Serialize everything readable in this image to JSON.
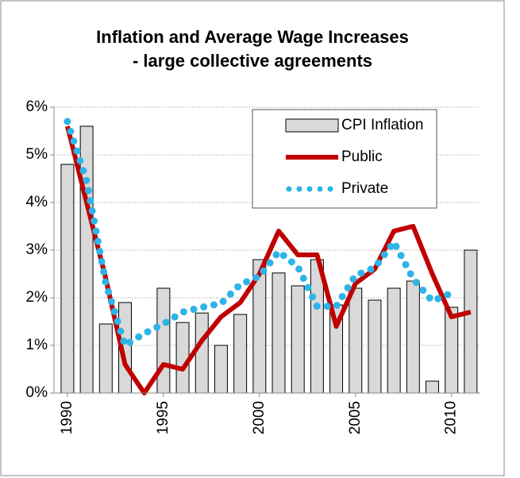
{
  "chart_data": {
    "type": "bar-line",
    "title": [
      "Inflation and Average Wage Increases",
      "- large collective agreements"
    ],
    "x": [
      1990,
      1991,
      1992,
      1993,
      1994,
      1995,
      1996,
      1997,
      1998,
      1999,
      2000,
      2001,
      2002,
      2003,
      2004,
      2005,
      2006,
      2007,
      2008,
      2009,
      2010,
      2011
    ],
    "series": [
      {
        "name": "CPI Inflation",
        "kind": "bar",
        "color": "#d9d9d9",
        "values": [
          4.8,
          5.6,
          1.45,
          1.9,
          0,
          2.2,
          1.48,
          1.68,
          1.0,
          1.65,
          2.8,
          2.52,
          2.25,
          2.8,
          1.85,
          2.2,
          1.95,
          2.2,
          2.35,
          0.25,
          1.8,
          3.0
        ]
      },
      {
        "name": "Public",
        "kind": "line",
        "color": "#c00000",
        "values": [
          5.6,
          4.0,
          2.4,
          0.6,
          0.0,
          0.6,
          0.5,
          1.1,
          1.6,
          1.9,
          2.5,
          3.4,
          2.9,
          2.9,
          1.4,
          2.3,
          2.6,
          3.4,
          3.5,
          2.5,
          1.6,
          1.7
        ]
      },
      {
        "name": "Private",
        "kind": "dotted",
        "color": "#2db4e8",
        "values": [
          5.7,
          4.45,
          2.3,
          1.0,
          1.25,
          1.45,
          1.7,
          1.8,
          1.88,
          2.28,
          2.45,
          2.97,
          2.65,
          1.82,
          1.82,
          2.47,
          2.63,
          3.17,
          2.4,
          1.93,
          2.1,
          null
        ]
      }
    ],
    "xlim": [
      1989.3,
      2011.5
    ],
    "xticks": [
      1990,
      1995,
      2000,
      2005,
      2010
    ],
    "ylim": [
      0,
      6
    ],
    "yticks": [
      {
        "value": 0,
        "label": "0%"
      },
      {
        "value": 1,
        "label": "1%"
      },
      {
        "value": 2,
        "label": "2%"
      },
      {
        "value": 3,
        "label": "3%"
      },
      {
        "value": 4,
        "label": "4%"
      },
      {
        "value": 5,
        "label": "5%"
      },
      {
        "value": 6,
        "label": "6%"
      }
    ],
    "grid": true,
    "legend": "top-right"
  }
}
